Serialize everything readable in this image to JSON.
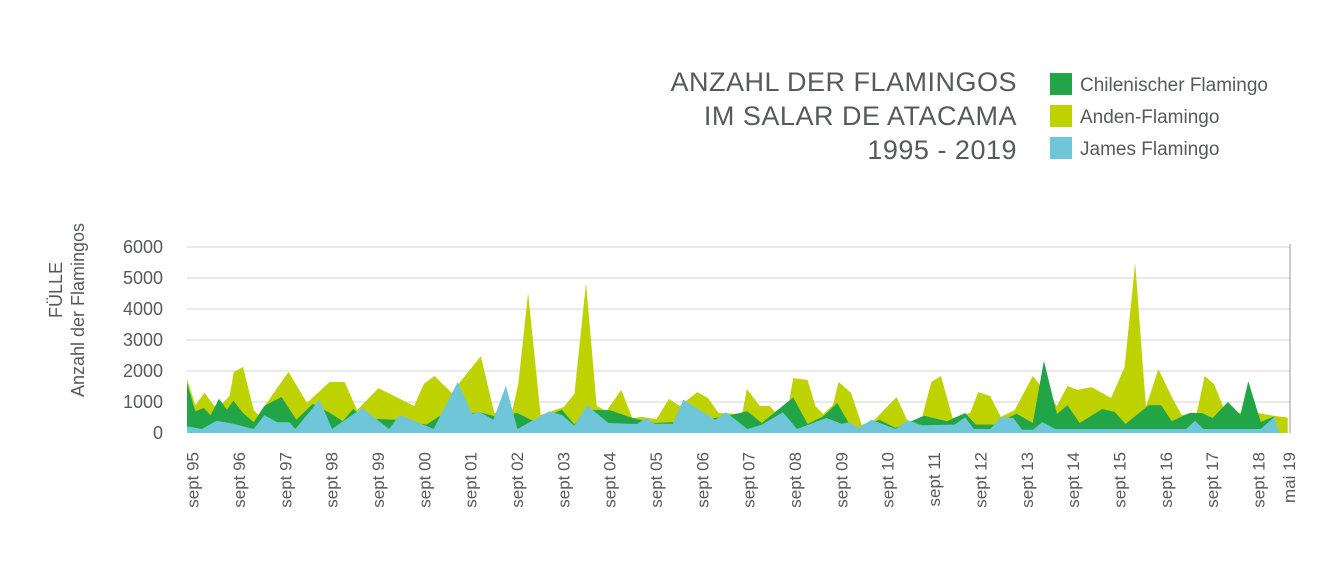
{
  "chart_data": {
    "type": "area",
    "title": [
      "ANZAHL DER FLAMINGOS",
      "IM SALAR DE ATACAMA",
      "1995 - 2019"
    ],
    "ylabel": [
      "FÜLLE",
      "Anzahl der Flamingos"
    ],
    "xlabel": "",
    "ylim": [
      0,
      6000
    ],
    "yticks": [
      0,
      1000,
      2000,
      3000,
      4000,
      5000,
      6000
    ],
    "xlim": [
      1995.55,
      2019.35
    ],
    "grid": true,
    "legend_position": "top-right",
    "xticks": [
      {
        "label": "sept 95",
        "x": 1995.67
      },
      {
        "label": "sept 96",
        "x": 1996.67
      },
      {
        "label": "sept 97",
        "x": 1997.67
      },
      {
        "label": "sept 98",
        "x": 1998.67
      },
      {
        "label": "sept 99",
        "x": 1999.67
      },
      {
        "label": "sept 00",
        "x": 2000.67
      },
      {
        "label": "sept 01",
        "x": 2001.67
      },
      {
        "label": "sept 02",
        "x": 2002.67
      },
      {
        "label": "sept 03",
        "x": 2003.67
      },
      {
        "label": "sept 04",
        "x": 2004.67
      },
      {
        "label": "sept 05",
        "x": 2005.67
      },
      {
        "label": "sept 06",
        "x": 2006.67
      },
      {
        "label": "sept 07",
        "x": 2007.67
      },
      {
        "label": "sept 08",
        "x": 2008.67
      },
      {
        "label": "sept 09",
        "x": 2009.67
      },
      {
        "label": "sept 10",
        "x": 2010.67
      },
      {
        "label": "sept 11",
        "x": 2011.67
      },
      {
        "label": "sept 12",
        "x": 2012.67
      },
      {
        "label": "sept 13",
        "x": 2013.67
      },
      {
        "label": "sept 14",
        "x": 2014.67
      },
      {
        "label": "sept 15",
        "x": 2015.67
      },
      {
        "label": "sept 16",
        "x": 2016.67
      },
      {
        "label": "sept 17",
        "x": 2017.67
      },
      {
        "label": "sept 18",
        "x": 2018.67
      },
      {
        "label": "mai 19",
        "x": 2019.33
      }
    ],
    "series": [
      {
        "name": "Anden-Flamingo",
        "color": "#bed200",
        "points": [
          [
            1995.55,
            1740
          ],
          [
            1995.73,
            900
          ],
          [
            1995.93,
            1300
          ],
          [
            1996.14,
            870
          ],
          [
            1996.32,
            960
          ],
          [
            1996.47,
            1200
          ],
          [
            1996.56,
            1970
          ],
          [
            1996.76,
            2130
          ],
          [
            1996.99,
            740
          ],
          [
            1997.09,
            580
          ],
          [
            1997.74,
            1970
          ],
          [
            1998.14,
            970
          ],
          [
            1998.63,
            1650
          ],
          [
            1998.95,
            1650
          ],
          [
            1999.22,
            740
          ],
          [
            1999.68,
            1450
          ],
          [
            2000.45,
            870
          ],
          [
            2000.66,
            1580
          ],
          [
            2000.89,
            1840
          ],
          [
            2001.26,
            1300
          ],
          [
            2001.89,
            2480
          ],
          [
            2002.18,
            650
          ],
          [
            2002.56,
            650
          ],
          [
            2002.7,
            1610
          ],
          [
            2002.91,
            4520
          ],
          [
            2003.18,
            580
          ],
          [
            2003.68,
            840
          ],
          [
            2003.91,
            1260
          ],
          [
            2004.16,
            4840
          ],
          [
            2004.39,
            870
          ],
          [
            2004.6,
            710
          ],
          [
            2004.92,
            1390
          ],
          [
            2005.16,
            480
          ],
          [
            2005.37,
            520
          ],
          [
            2005.68,
            450
          ],
          [
            2005.95,
            1100
          ],
          [
            2006.18,
            870
          ],
          [
            2006.56,
            1320
          ],
          [
            2006.79,
            1130
          ],
          [
            2007.02,
            650
          ],
          [
            2007.53,
            610
          ],
          [
            2007.63,
            1420
          ],
          [
            2007.91,
            870
          ],
          [
            2008.12,
            870
          ],
          [
            2008.3,
            580
          ],
          [
            2008.53,
            900
          ],
          [
            2008.63,
            1770
          ],
          [
            2008.94,
            1710
          ],
          [
            2009.11,
            870
          ],
          [
            2009.28,
            610
          ],
          [
            2009.49,
            900
          ],
          [
            2009.61,
            1650
          ],
          [
            2009.88,
            1290
          ],
          [
            2010.11,
            260
          ],
          [
            2010.38,
            420
          ],
          [
            2010.86,
            1160
          ],
          [
            2011.11,
            350
          ],
          [
            2011.38,
            320
          ],
          [
            2011.61,
            1650
          ],
          [
            2011.82,
            1840
          ],
          [
            2012.07,
            480
          ],
          [
            2012.45,
            650
          ],
          [
            2012.62,
            1320
          ],
          [
            2012.88,
            1190
          ],
          [
            2013.11,
            520
          ],
          [
            2013.41,
            740
          ],
          [
            2013.8,
            1840
          ],
          [
            2014.32,
            870
          ],
          [
            2014.55,
            1520
          ],
          [
            2014.76,
            1390
          ],
          [
            2015.07,
            1480
          ],
          [
            2015.49,
            1130
          ],
          [
            2015.78,
            2130
          ],
          [
            2016.01,
            5480
          ],
          [
            2016.24,
            840
          ],
          [
            2016.51,
            2060
          ],
          [
            2016.8,
            1160
          ],
          [
            2017.01,
            580
          ],
          [
            2017.34,
            650
          ],
          [
            2017.51,
            1840
          ],
          [
            2017.71,
            1580
          ],
          [
            2017.91,
            840
          ],
          [
            2018.26,
            650
          ],
          [
            2018.64,
            650
          ],
          [
            2019.01,
            550
          ],
          [
            2019.3,
            500
          ]
        ]
      },
      {
        "name": "Chilenischer Flamingo",
        "color": "#22a547",
        "points": [
          [
            1995.55,
            1613
          ],
          [
            1995.73,
            700
          ],
          [
            1995.91,
            806
          ],
          [
            1996.06,
            570
          ],
          [
            1996.24,
            1108
          ],
          [
            1996.41,
            753
          ],
          [
            1996.55,
            1043
          ],
          [
            1996.76,
            645
          ],
          [
            1996.99,
            344
          ],
          [
            1997.22,
            882
          ],
          [
            1997.59,
            1161
          ],
          [
            1997.91,
            430
          ],
          [
            1998.26,
            935
          ],
          [
            1998.64,
            645
          ],
          [
            1998.91,
            376
          ],
          [
            1999.14,
            785
          ],
          [
            1999.33,
            484
          ],
          [
            1999.68,
            452
          ],
          [
            2000.03,
            430
          ],
          [
            2000.72,
            270
          ],
          [
            2000.99,
            538
          ],
          [
            2001.87,
            667
          ],
          [
            2002.18,
            538
          ],
          [
            2002.68,
            645
          ],
          [
            2003.03,
            376
          ],
          [
            2003.64,
            753
          ],
          [
            2003.91,
            270
          ],
          [
            2004.18,
            753
          ],
          [
            2004.68,
            731
          ],
          [
            2005.16,
            484
          ],
          [
            2005.64,
            323
          ],
          [
            2006.03,
            344
          ],
          [
            2006.95,
            484
          ],
          [
            2007.26,
            570
          ],
          [
            2007.64,
            699
          ],
          [
            2007.95,
            323
          ],
          [
            2008.63,
            1150
          ],
          [
            2008.94,
            290
          ],
          [
            2009.28,
            538
          ],
          [
            2009.58,
            968
          ],
          [
            2009.84,
            290
          ],
          [
            2010.03,
            161
          ],
          [
            2010.49,
            430
          ],
          [
            2010.84,
            161
          ],
          [
            2011.45,
            559
          ],
          [
            2011.95,
            376
          ],
          [
            2012.34,
            645
          ],
          [
            2012.57,
            270
          ],
          [
            2012.95,
            270
          ],
          [
            2013.45,
            624
          ],
          [
            2013.8,
            323
          ],
          [
            2014.04,
            2333
          ],
          [
            2014.32,
            613
          ],
          [
            2014.55,
            892
          ],
          [
            2014.81,
            323
          ],
          [
            2015.3,
            774
          ],
          [
            2015.57,
            677
          ],
          [
            2015.8,
            290
          ],
          [
            2016.3,
            892
          ],
          [
            2016.57,
            892
          ],
          [
            2016.8,
            376
          ],
          [
            2017.18,
            645
          ],
          [
            2017.45,
            645
          ],
          [
            2017.68,
            484
          ],
          [
            2018.01,
            1000
          ],
          [
            2018.28,
            591
          ],
          [
            2018.45,
            1667
          ],
          [
            2018.72,
            355
          ],
          [
            2019.01,
            538
          ]
        ]
      },
      {
        "name": "James Flamingo",
        "color": "#6fc6d8",
        "points": [
          [
            1995.55,
            215
          ],
          [
            1995.87,
            129
          ],
          [
            1996.19,
            398
          ],
          [
            1996.55,
            301
          ],
          [
            1996.99,
            129
          ],
          [
            1997.22,
            570
          ],
          [
            1997.5,
            344
          ],
          [
            1997.76,
            344
          ],
          [
            1997.89,
            129
          ],
          [
            1998.41,
            1075
          ],
          [
            1998.68,
            129
          ],
          [
            1999.33,
            806
          ],
          [
            1999.91,
            129
          ],
          [
            2000.14,
            591
          ],
          [
            2000.87,
            129
          ],
          [
            2001.39,
            1645
          ],
          [
            2001.7,
            624
          ],
          [
            2001.86,
            688
          ],
          [
            2002.16,
            430
          ],
          [
            2002.43,
            1527
          ],
          [
            2002.68,
            129
          ],
          [
            2003.37,
            699
          ],
          [
            2003.64,
            581
          ],
          [
            2003.91,
            237
          ],
          [
            2004.18,
            892
          ],
          [
            2004.64,
            323
          ],
          [
            2005.26,
            290
          ],
          [
            2005.45,
            484
          ],
          [
            2005.64,
            301
          ],
          [
            2006.03,
            301
          ],
          [
            2006.26,
            1075
          ],
          [
            2006.95,
            430
          ],
          [
            2007.18,
            667
          ],
          [
            2007.64,
            129
          ],
          [
            2007.95,
            269
          ],
          [
            2008.41,
            667
          ],
          [
            2008.71,
            129
          ],
          [
            2009.34,
            484
          ],
          [
            2009.68,
            301
          ],
          [
            2009.84,
            344
          ],
          [
            2010.03,
            161
          ],
          [
            2010.32,
            430
          ],
          [
            2010.84,
            129
          ],
          [
            2011.11,
            409
          ],
          [
            2011.41,
            247
          ],
          [
            2012.11,
            270
          ],
          [
            2012.34,
            505
          ],
          [
            2012.53,
            129
          ],
          [
            2012.88,
            129
          ],
          [
            2013.11,
            516
          ],
          [
            2013.38,
            484
          ],
          [
            2013.57,
            108
          ],
          [
            2013.8,
            108
          ],
          [
            2014.01,
            355
          ],
          [
            2014.28,
            129
          ],
          [
            2017.11,
            129
          ],
          [
            2017.3,
            398
          ],
          [
            2017.48,
            129
          ],
          [
            2018.72,
            129
          ],
          [
            2019.01,
            516
          ],
          [
            2019.11,
            50
          ]
        ]
      }
    ],
    "legend": [
      {
        "label": "Chilenischer Flamingo",
        "color": "#22a547"
      },
      {
        "label": "Anden-Flamingo",
        "color": "#bed200"
      },
      {
        "label": "James Flamingo",
        "color": "#6fc6d8"
      }
    ]
  }
}
